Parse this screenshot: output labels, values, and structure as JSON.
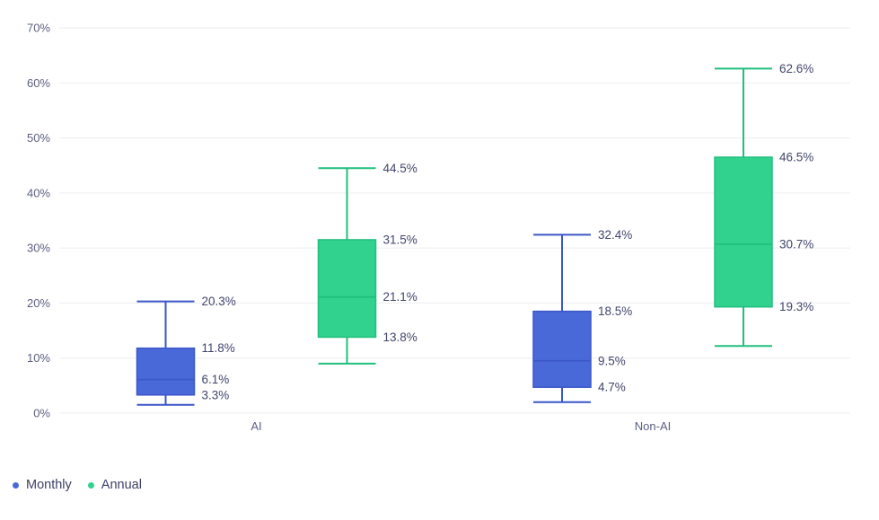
{
  "chart_data": {
    "type": "boxplot",
    "title": "",
    "categories": [
      "AI",
      "Non-AI"
    ],
    "y_axis": {
      "min": 0,
      "max": 70,
      "ticks": [
        {
          "value": 0,
          "label": "0%"
        },
        {
          "value": 10,
          "label": "10%"
        },
        {
          "value": 20,
          "label": "20%"
        },
        {
          "value": 30,
          "label": "30%"
        },
        {
          "value": 40,
          "label": "40%"
        },
        {
          "value": 50,
          "label": "50%"
        },
        {
          "value": 60,
          "label": "60%"
        },
        {
          "value": 70,
          "label": "70%"
        }
      ]
    },
    "series": [
      {
        "name": "Monthly",
        "color": "#4a69d9",
        "border_color": "#3b57c8",
        "boxes": [
          {
            "category": "AI",
            "low": 1.5,
            "q1": 3.3,
            "median": 6.1,
            "q3": 11.8,
            "high": 20.3,
            "value_labels": [
              {
                "stat": "high",
                "text": "20.3%"
              },
              {
                "stat": "q3",
                "text": "11.8%"
              },
              {
                "stat": "median",
                "text": "6.1%"
              },
              {
                "stat": "q1",
                "text": "3.3%"
              }
            ]
          },
          {
            "category": "Non-AI",
            "low": 2.0,
            "q1": 4.7,
            "median": 9.5,
            "q3": 18.5,
            "high": 32.4,
            "value_labels": [
              {
                "stat": "high",
                "text": "32.4%"
              },
              {
                "stat": "q3",
                "text": "18.5%"
              },
              {
                "stat": "median",
                "text": "9.5%"
              },
              {
                "stat": "q1",
                "text": "4.7%"
              }
            ]
          }
        ]
      },
      {
        "name": "Annual",
        "color": "#31d28e",
        "border_color": "#20bf7d",
        "boxes": [
          {
            "category": "AI",
            "low": 9.0,
            "q1": 13.8,
            "median": 21.1,
            "q3": 31.5,
            "high": 44.5,
            "value_labels": [
              {
                "stat": "high",
                "text": "44.5%"
              },
              {
                "stat": "q3",
                "text": "31.5%"
              },
              {
                "stat": "median",
                "text": "21.1%"
              },
              {
                "stat": "q1",
                "text": "13.8%"
              }
            ]
          },
          {
            "category": "Non-AI",
            "low": 12.2,
            "q1": 19.3,
            "median": 30.7,
            "q3": 46.5,
            "high": 62.6,
            "value_labels": [
              {
                "stat": "high",
                "text": "62.6%"
              },
              {
                "stat": "q3",
                "text": "46.5%"
              },
              {
                "stat": "median",
                "text": "30.7%"
              },
              {
                "stat": "q1",
                "text": "19.3%"
              }
            ]
          }
        ]
      }
    ],
    "legend": {
      "position": "bottom-left",
      "items": [
        "Monthly",
        "Annual"
      ]
    },
    "colors": {
      "background": "#ffffff",
      "gridline": "#ededf2",
      "tick_label": "#5c6080",
      "x_label": "#5c6080",
      "value_label": "#41466b",
      "legend_label": "#3c4066"
    }
  }
}
